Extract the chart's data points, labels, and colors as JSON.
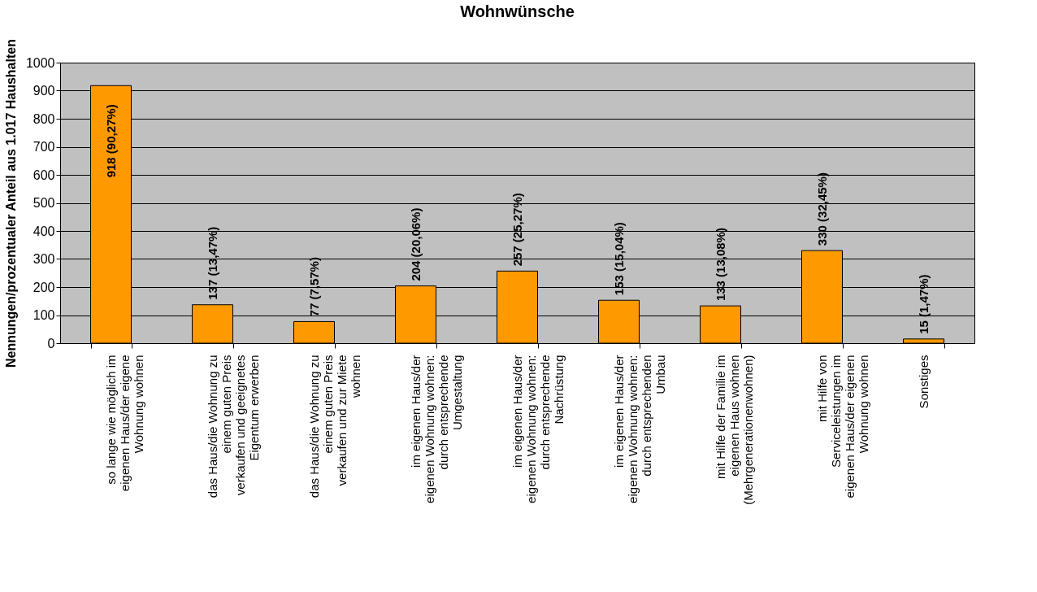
{
  "chart_data": {
    "type": "bar",
    "title": "Wohnwünsche",
    "ylabel": "Nennungen/prozentualer Anteil aus 1.017 Haushalten",
    "categories": [
      "so lange wie möglich im eigenen Haus/der eigene Wohnung wohnen",
      "das Haus/die Wohnung zu einem guten Preis verkaufen und geeignetes Eigentum erwerben",
      "das Haus/die Wohnung zu einem guten Preis verkaufen und zur Miete wohnen",
      "im eigenen Haus/der eigenen Wohnung wohnen: durch entsprechende Umgestaltung",
      "im eigenen Haus/der eigenen Wohnung wohnen: durch entsprechende Nachrüstung",
      "im eigenen Haus/der eigenen Wohnung wohnen: durch entsprechenden Umbau",
      "mit Hilfe der Familie im eigenen Haus wohnen (Mehrgenerationenwohnen)",
      "mit Hilfe von Serviceleistungen im eigenen Haus/der eigenen Wohnung wohnen",
      "Sonstiges"
    ],
    "values": [
      918,
      137,
      77,
      204,
      257,
      153,
      133,
      330,
      15
    ],
    "value_labels": [
      "918 (90,27%)",
      "137 (13,47%)",
      "77 (7,57%)",
      "204 (20,06%)",
      "257 (25,27%)",
      "153 (15,04%)",
      "133 (13,08%)",
      "330 (32,45%)",
      "15 (1,47%)"
    ],
    "color": "#ff9900",
    "ylim": [
      0,
      1000
    ],
    "yticks": [
      0,
      100,
      200,
      300,
      400,
      500,
      600,
      700,
      800,
      900,
      1000
    ],
    "grid": "y"
  }
}
